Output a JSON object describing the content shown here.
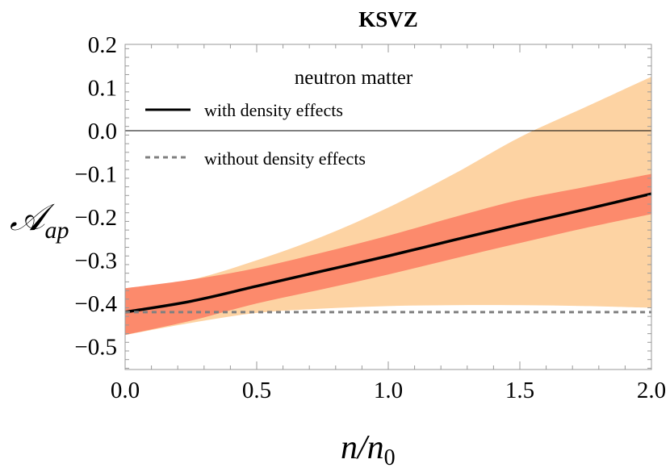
{
  "chart_data": {
    "type": "area",
    "title": "KSVZ",
    "xlabel": "n/n",
    "xlabel_sub": "0",
    "ylabel": "𝒜",
    "ylabel_sub": "ap",
    "annotation": "neutron matter",
    "xlim": [
      0,
      2
    ],
    "ylim": [
      -0.553,
      0.2
    ],
    "xticks": [
      "0.0",
      "0.5",
      "1.0",
      "1.5",
      "2.0"
    ],
    "xtick_values": [
      0,
      0.5,
      1,
      1.5,
      2
    ],
    "yticks": [
      "0.2",
      "0.1",
      "0.0",
      "−0.1",
      "−0.2",
      "−0.3",
      "−0.4",
      "−0.5"
    ],
    "ytick_values": [
      0.2,
      0.1,
      0,
      -0.1,
      -0.2,
      -0.3,
      -0.4,
      -0.5
    ],
    "grid": false,
    "legend_position": "top-left",
    "x": [
      0,
      0.25,
      0.5,
      0.75,
      1.0,
      1.25,
      1.5,
      1.75,
      2.0
    ],
    "series": [
      {
        "name": "with density effects",
        "style": "solid",
        "color": "#000000",
        "values": [
          -0.42,
          -0.395,
          -0.36,
          -0.325,
          -0.29,
          -0.253,
          -0.217,
          -0.182,
          -0.146
        ]
      },
      {
        "name": "without density effects",
        "style": "dashed",
        "color": "#808080",
        "values": [
          -0.42,
          -0.42,
          -0.42,
          -0.42,
          -0.42,
          -0.42,
          -0.42,
          -0.42,
          -0.42
        ]
      }
    ],
    "bands": [
      {
        "color": "#fdd3a3",
        "upper": [
          -0.365,
          -0.345,
          -0.3,
          -0.245,
          -0.178,
          -0.1,
          -0.015,
          0.055,
          0.125
        ],
        "lower": [
          -0.473,
          -0.445,
          -0.422,
          -0.412,
          -0.406,
          -0.404,
          -0.404,
          -0.406,
          -0.41
        ]
      },
      {
        "color": "#fc8a6c",
        "upper": [
          -0.365,
          -0.345,
          -0.318,
          -0.282,
          -0.243,
          -0.2,
          -0.16,
          -0.13,
          -0.1
        ],
        "lower": [
          -0.473,
          -0.44,
          -0.4,
          -0.367,
          -0.333,
          -0.296,
          -0.26,
          -0.225,
          -0.193
        ]
      }
    ],
    "reference_line": 0
  }
}
